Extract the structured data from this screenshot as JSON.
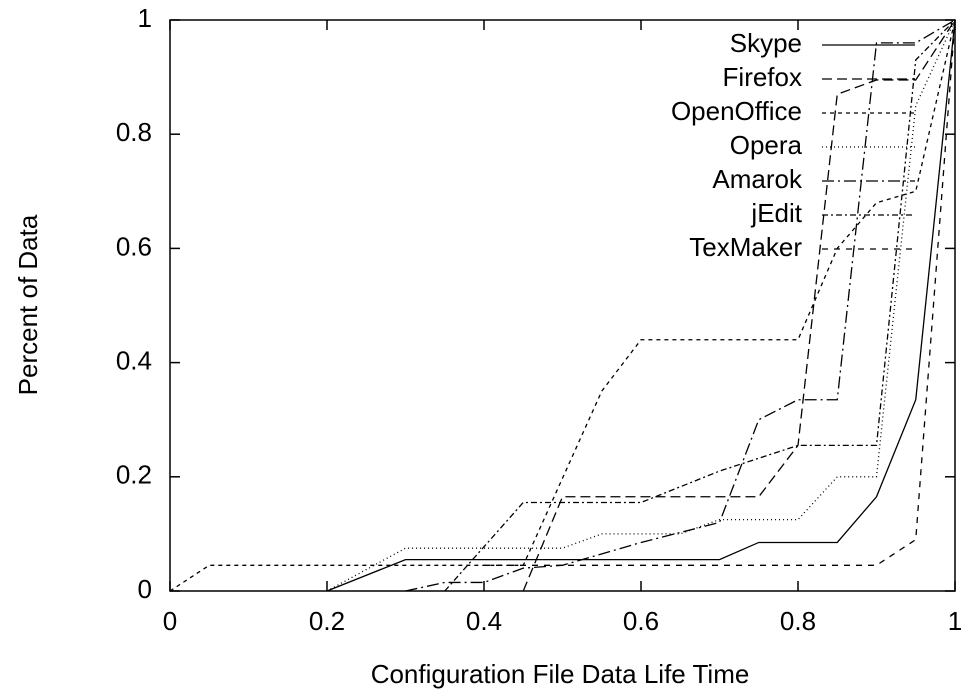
{
  "chart_data": {
    "type": "line",
    "xlabel": "Configuration File Data Life Time",
    "ylabel": "Percent of Data",
    "xlim": [
      0,
      1
    ],
    "ylim": [
      0,
      1
    ],
    "xticks": [
      0,
      0.2,
      0.4,
      0.6,
      0.8,
      1
    ],
    "yticks": [
      0,
      0.2,
      0.4,
      0.6,
      0.8,
      1
    ],
    "legend": "top-right",
    "series": [
      {
        "name": "Skype",
        "color": "#000000",
        "dash": "none",
        "x": [
          0.2,
          0.3,
          0.7,
          0.75,
          0.85,
          0.9,
          0.95,
          1
        ],
        "values": [
          0,
          0.055,
          0.055,
          0.085,
          0.085,
          0.165,
          0.335,
          1
        ]
      },
      {
        "name": "Firefox",
        "color": "#000000",
        "dash": "10,5",
        "x": [
          0.45,
          0.5,
          0.75,
          0.8,
          0.85,
          0.9,
          0.95,
          1
        ],
        "values": [
          0,
          0.165,
          0.165,
          0.255,
          0.87,
          0.895,
          0.895,
          1
        ]
      },
      {
        "name": "OpenOffice",
        "color": "#000000",
        "dash": "4,4",
        "x": [
          0,
          0.05,
          0.45,
          0.55,
          0.6,
          0.8,
          0.85,
          0.9,
          0.95,
          1
        ],
        "values": [
          0,
          0.045,
          0.045,
          0.35,
          0.44,
          0.44,
          0.6,
          0.68,
          0.7,
          1
        ]
      },
      {
        "name": "Opera",
        "color": "#000000",
        "dash": "1,3",
        "x": [
          0.2,
          0.3,
          0.5,
          0.55,
          0.65,
          0.7,
          0.8,
          0.85,
          0.9,
          0.95,
          1
        ],
        "values": [
          0,
          0.075,
          0.075,
          0.1,
          0.1,
          0.125,
          0.125,
          0.2,
          0.2,
          0.85,
          1
        ]
      },
      {
        "name": "Amarok",
        "color": "#000000",
        "dash": "12,4,2,4",
        "x": [
          0.3,
          0.35,
          0.4,
          0.45,
          0.5,
          0.6,
          0.7,
          0.75,
          0.8,
          0.85,
          0.9,
          0.95,
          1
        ],
        "values": [
          0,
          0.015,
          0.015,
          0.04,
          0.045,
          0.085,
          0.12,
          0.3,
          0.335,
          0.335,
          0.96,
          0.96,
          1
        ]
      },
      {
        "name": "jEdit",
        "color": "#000000",
        "dash": "6,3,2,3",
        "x": [
          0.35,
          0.45,
          0.6,
          0.7,
          0.8,
          0.9,
          0.95,
          1
        ],
        "values": [
          0,
          0.155,
          0.155,
          0.21,
          0.255,
          0.255,
          0.93,
          1
        ]
      },
      {
        "name": "TexMaker",
        "color": "#000000",
        "dash": "6,6",
        "x": [
          0.4,
          0.45,
          0.9,
          0.95,
          1
        ],
        "values": [
          0.045,
          0.045,
          0.045,
          0.09,
          1
        ]
      }
    ]
  }
}
